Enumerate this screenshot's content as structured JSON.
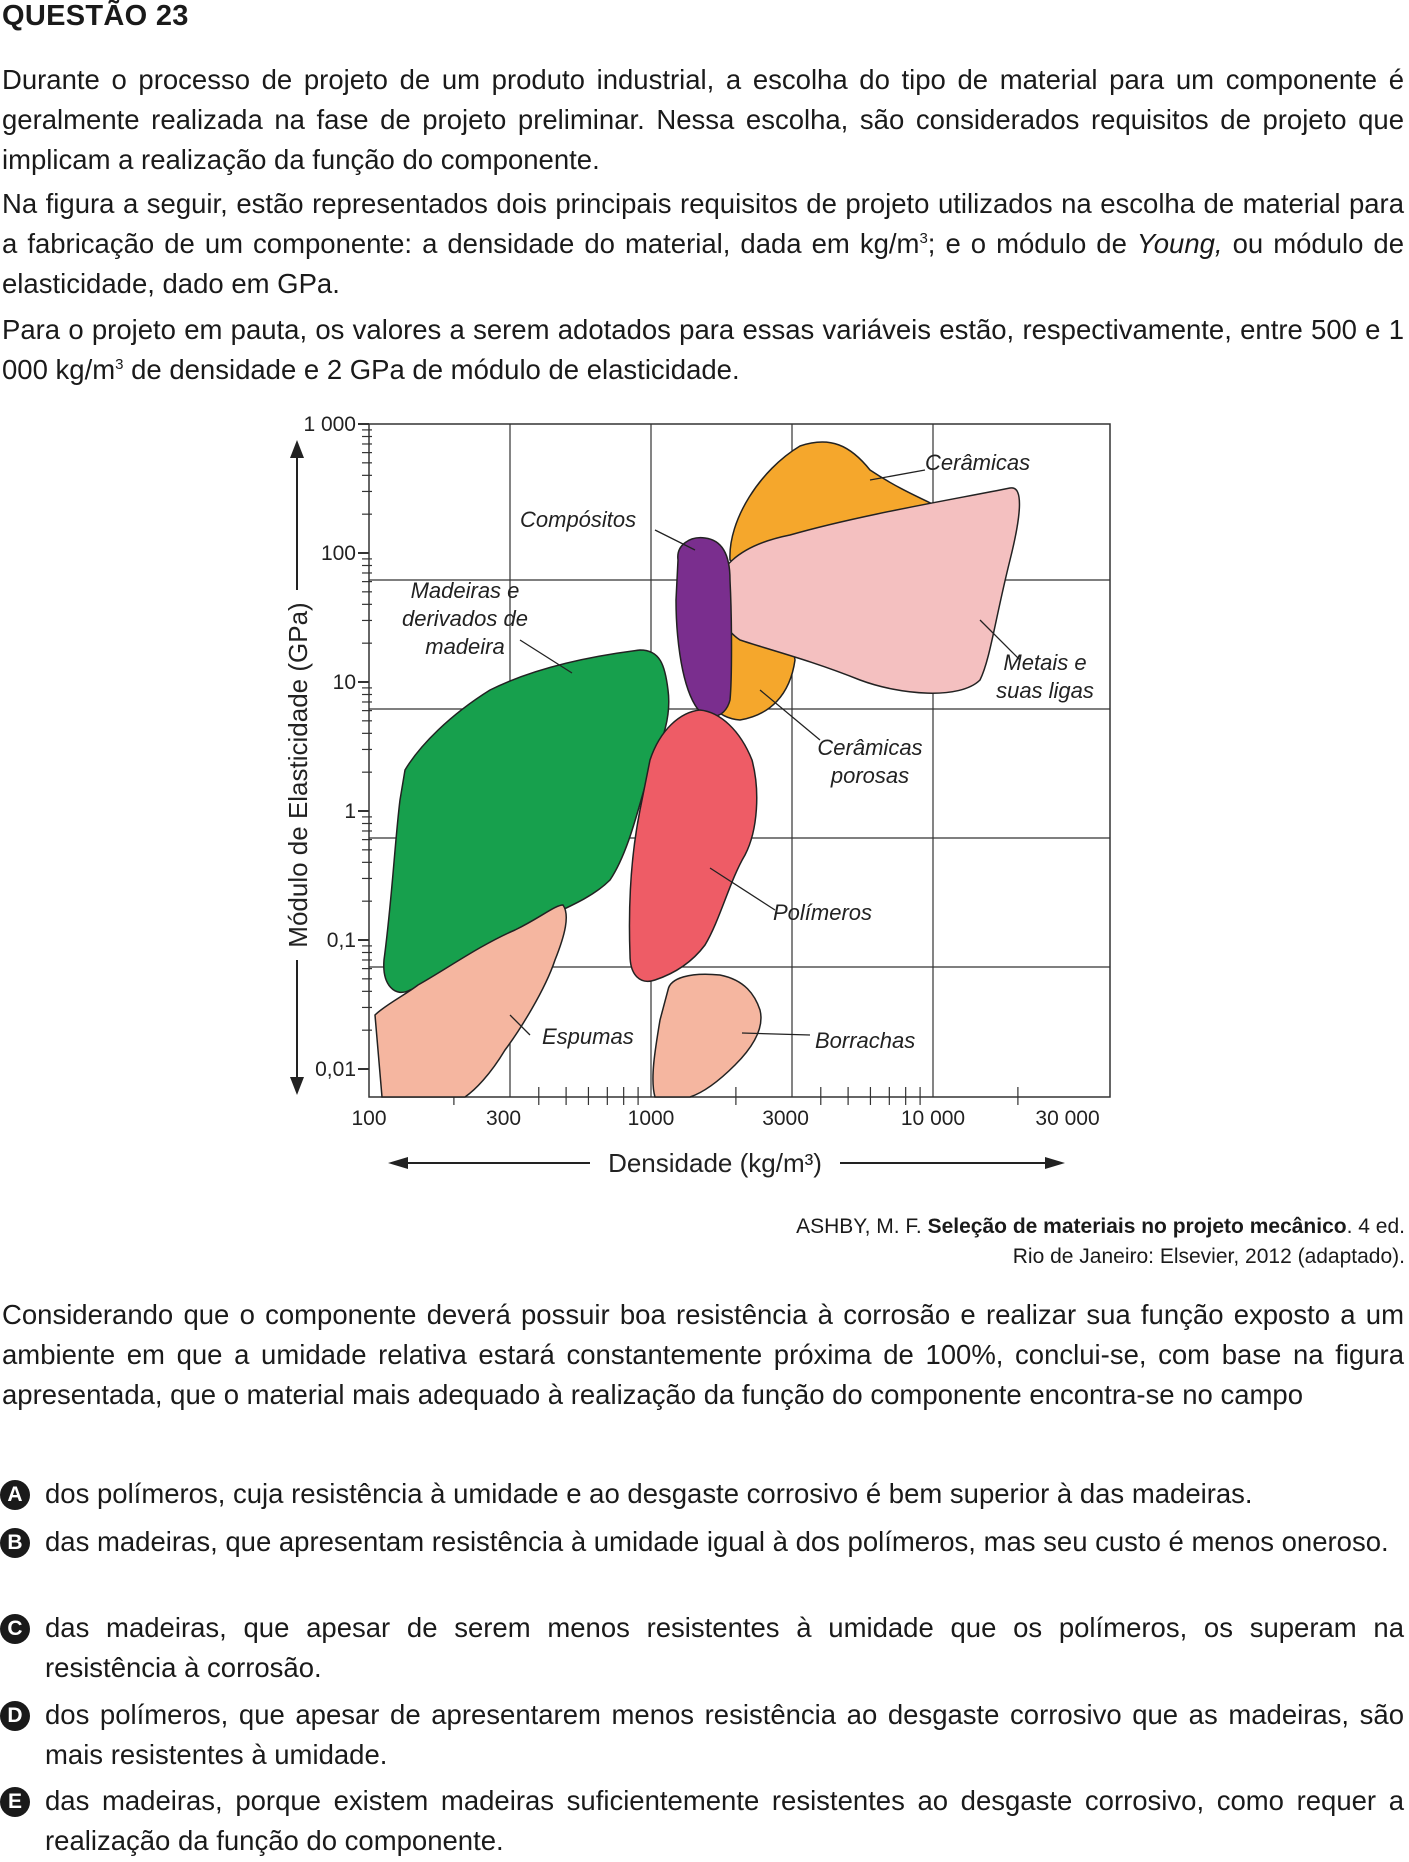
{
  "question": {
    "title": "QUESTÃO 23",
    "p1": "Durante o processo de projeto de um produto industrial, a escolha do tipo de material para um componente é geralmente realizada na fase de projeto preliminar. Nessa escolha, são considerados requisitos de projeto que implicam a realização da função do componente.",
    "p2_a": "Na figura a seguir, estão representados dois principais requisitos de projeto utilizados na escolha de material para a fabricação de um componente: a densidade do material, dada em kg/m",
    "p2_sup": "3",
    "p2_b": "; e o módulo de ",
    "p2_italic": "Young,",
    "p2_c": " ou módulo de elasticidade, dado em GPa.",
    "p3_a": "Para o projeto em pauta, os valores a serem adotados para essas variáveis estão, respectivamente, entre 500 e 1 000 kg/m",
    "p3_sup": "3",
    "p3_b": " de densidade e 2 GPa de módulo de elasticidade.",
    "stem": "Considerando que o componente deverá possuir boa resistência à corrosão e realizar sua função exposto a um ambiente em que a umidade relativa estará constantemente próxima de 100%, conclui-se, com base na figura apresentada, que o material mais adequado à realização da função do componente encontra-se no campo"
  },
  "chart_data": {
    "type": "scatter",
    "title": "",
    "xlabel": "Densidade (kg/m³)",
    "ylabel": "Módulo de Elasticidade (GPa)",
    "xscale": "log",
    "yscale": "log",
    "xlim": [
      100,
      50000
    ],
    "ylim": [
      0.01,
      1000
    ],
    "x_ticks": [
      "100",
      "300",
      "1000",
      "3000",
      "10 000",
      "30 000"
    ],
    "y_ticks": [
      "1 000",
      "100",
      "10",
      "1",
      "0,1",
      "0,01"
    ],
    "grid": true,
    "regions": [
      {
        "name": "Cerâmicas",
        "color": "#f5a72c"
      },
      {
        "name": "Metais e suas ligas",
        "color": "#f4c0c0"
      },
      {
        "name": "Compósitos",
        "color": "#7a2e8e"
      },
      {
        "name": "Madeiras e derivados de madeira",
        "color": "#17a04d"
      },
      {
        "name": "Polímeros",
        "color": "#ee5c66"
      },
      {
        "name": "Espumas",
        "color": "#f5b6a0"
      },
      {
        "name": "Borrachas",
        "color": "#f5b6a0"
      },
      {
        "name": "Cerâmicas porosas",
        "color": "#f5a72c"
      }
    ],
    "labels": {
      "ceramicas": "Cerâmicas",
      "compositos": "Compósitos",
      "madeiras": [
        "Madeiras e",
        "derivados de",
        "madeira"
      ],
      "metais": [
        "Metais e",
        "suas ligas"
      ],
      "ceramicas_porosas": [
        "Cerâmicas",
        "porosas"
      ],
      "polimeros": "Polímeros",
      "espumas": "Espumas",
      "borrachas": "Borrachas"
    }
  },
  "citation": {
    "author": "ASHBY, M. F. ",
    "work": "Seleção de materiais no projeto mecânico",
    "rest1": ". 4 ed.",
    "line2": "Rio de Janeiro: Elsevier, 2012 (adaptado)."
  },
  "options": [
    {
      "letter": "A",
      "text": "dos polímeros, cuja resistência à umidade e ao desgaste corrosivo é bem superior à das madeiras."
    },
    {
      "letter": "B",
      "text": "das madeiras, que apresentam resistência à umidade igual à dos polímeros, mas seu custo é menos oneroso."
    },
    {
      "letter": "C",
      "text": "das madeiras, que apesar de serem menos resistentes à umidade que os polímeros, os superam na resistência à corrosão."
    },
    {
      "letter": "D",
      "text": "dos polímeros, que apesar de apresentarem menos resistência ao desgaste corrosivo que as madeiras, são mais resistentes à umidade."
    },
    {
      "letter": "E",
      "text": "das madeiras, porque existem madeiras suficientemente resistentes ao desgaste corrosivo, como requer a realização da função do componente."
    }
  ]
}
